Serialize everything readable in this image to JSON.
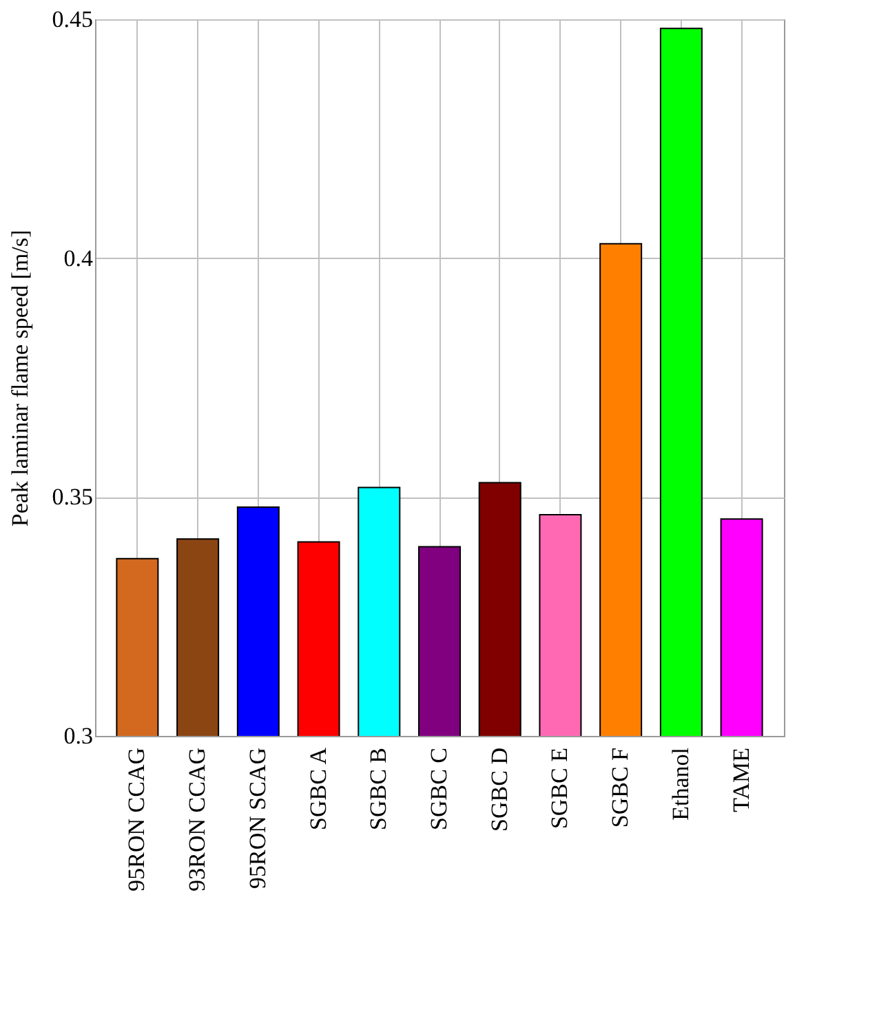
{
  "chart_data": {
    "type": "bar",
    "ylabel": "Peak laminar flame speed [m/s]",
    "categories": [
      "95RON CCAG",
      "93RON CCAG",
      "95RON SCAG",
      "SGBC A",
      "SGBC B",
      "SGBC C",
      "SGBC D",
      "SGBC E",
      "SGBC F",
      "Ethanol",
      "TAME"
    ],
    "values": [
      0.3371,
      0.3412,
      0.3479,
      0.3406,
      0.352,
      0.3396,
      0.353,
      0.3463,
      0.403,
      0.4481,
      0.3454
    ],
    "colors": [
      "#d2691e",
      "#8b4513",
      "#0000ff",
      "#ff0000",
      "#00ffff",
      "#800080",
      "#800000",
      "#ff69b4",
      "#ff8000",
      "#00ff00",
      "#ff00ff"
    ],
    "ylim": [
      0.3,
      0.45
    ],
    "yticks": [
      0.3,
      0.35,
      0.4,
      0.45
    ],
    "grid": true
  }
}
